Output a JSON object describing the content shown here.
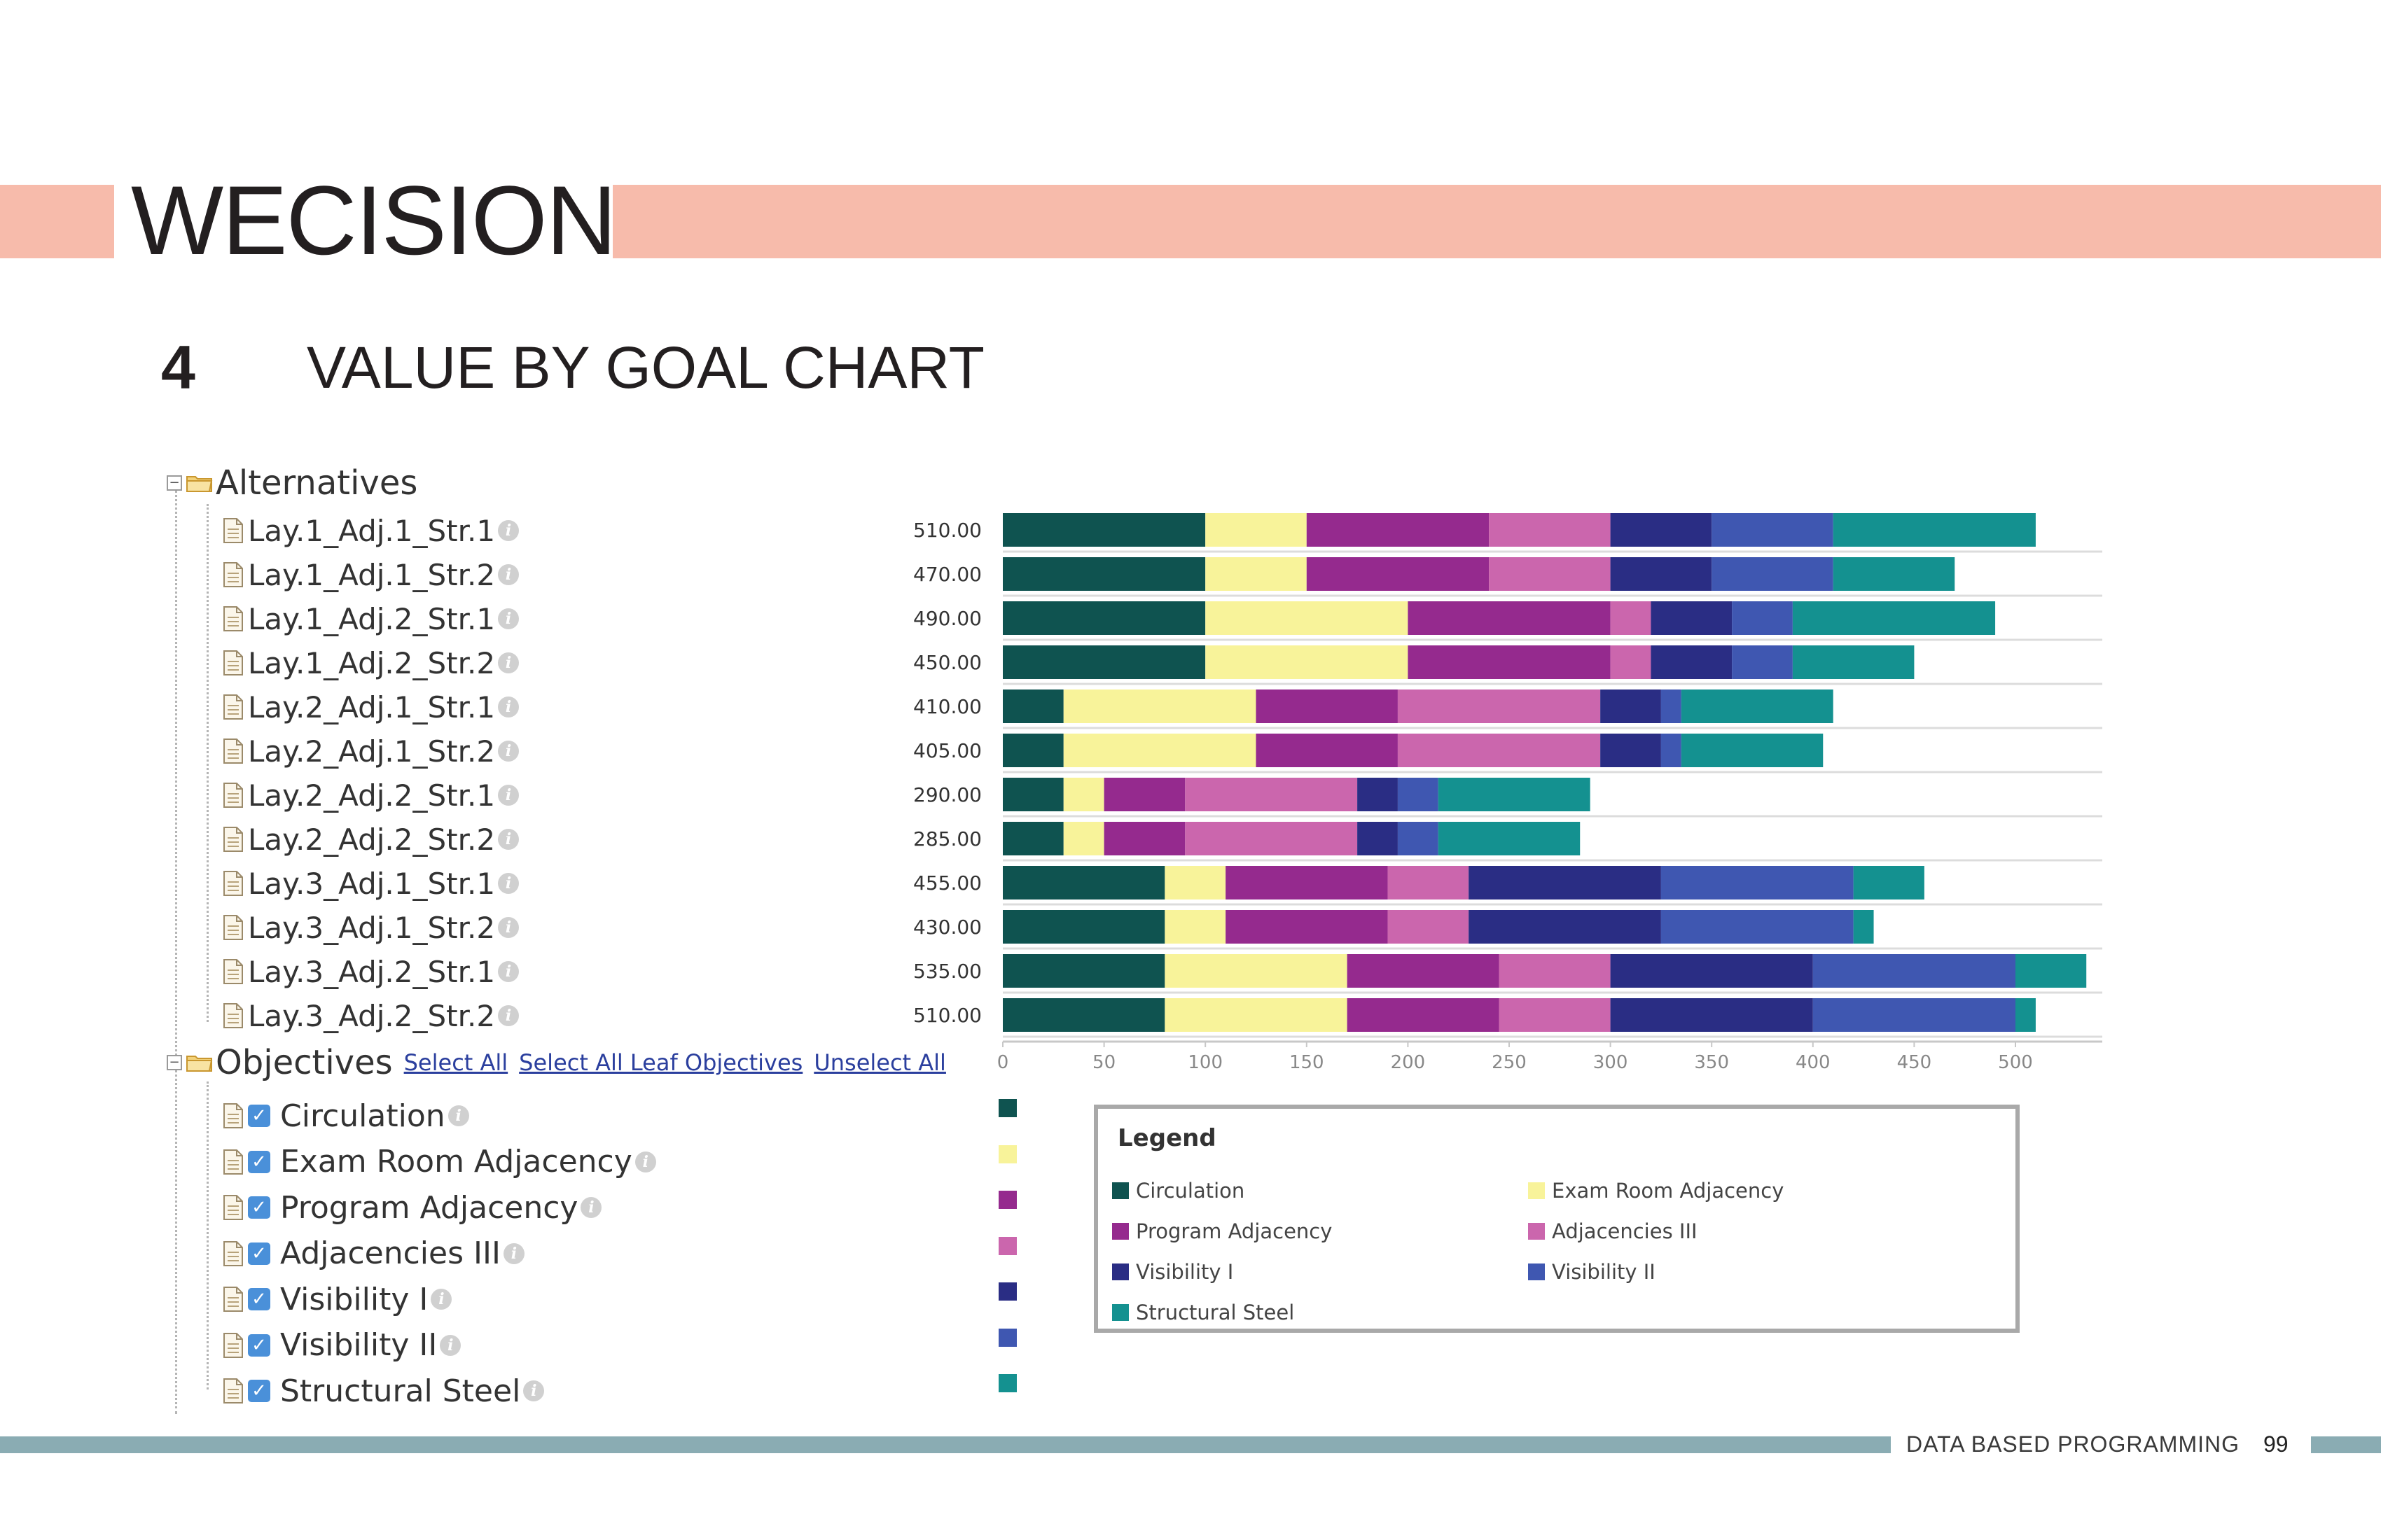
{
  "header": {
    "brand": "WECISION",
    "section_number": "4",
    "section_title": "VALUE BY GOAL CHART",
    "band_color": "#f7bbab"
  },
  "tree": {
    "alternatives_label": "Alternatives",
    "alternatives": [
      "Lay.1_Adj.1_Str.1",
      "Lay.1_Adj.1_Str.2",
      "Lay.1_Adj.2_Str.1",
      "Lay.1_Adj.2_Str.2",
      "Lay.2_Adj.1_Str.1",
      "Lay.2_Adj.1_Str.2",
      "Lay.2_Adj.2_Str.1",
      "Lay.2_Adj.2_Str.2",
      "Lay.3_Adj.1_Str.1",
      "Lay.3_Adj.1_Str.2",
      "Lay.3_Adj.2_Str.1",
      "Lay.3_Adj.2_Str.2"
    ],
    "objectives_label": "Objectives",
    "links": {
      "select_all": "Select All",
      "select_all_leaf": "Select All Leaf Objectives",
      "unselect_all": "Unselect All"
    },
    "objectives": [
      "Circulation",
      "Exam Room Adjacency",
      "Program Adjacency",
      "Adjacencies III",
      "Visibility I",
      "Visibility II",
      "Structural Steel"
    ],
    "objectives_checked": [
      true,
      true,
      true,
      true,
      true,
      true,
      true
    ]
  },
  "legend": {
    "title": "Legend"
  },
  "chart_data": {
    "type": "bar",
    "orientation": "horizontal",
    "stacked": true,
    "categories": [
      "Lay.1_Adj.1_Str.1",
      "Lay.1_Adj.1_Str.2",
      "Lay.1_Adj.2_Str.1",
      "Lay.1_Adj.2_Str.2",
      "Lay.2_Adj.1_Str.1",
      "Lay.2_Adj.1_Str.2",
      "Lay.2_Adj.2_Str.1",
      "Lay.2_Adj.2_Str.2",
      "Lay.3_Adj.1_Str.1",
      "Lay.3_Adj.1_Str.2",
      "Lay.3_Adj.2_Str.1",
      "Lay.3_Adj.2_Str.2"
    ],
    "totals": [
      "510.00",
      "470.00",
      "490.00",
      "450.00",
      "410.00",
      "405.00",
      "290.00",
      "285.00",
      "455.00",
      "430.00",
      "535.00",
      "510.00"
    ],
    "series": [
      {
        "name": "Circulation",
        "color": "#0f5350",
        "values": [
          100,
          100,
          100,
          100,
          30,
          30,
          30,
          30,
          80,
          80,
          80,
          80
        ]
      },
      {
        "name": "Exam Room Adjacency",
        "color": "#f8f39a",
        "values": [
          50,
          50,
          100,
          100,
          95,
          95,
          20,
          20,
          30,
          30,
          90,
          90
        ]
      },
      {
        "name": "Program Adjacency",
        "color": "#952a8e",
        "values": [
          90,
          90,
          100,
          100,
          70,
          70,
          40,
          40,
          80,
          80,
          75,
          75
        ]
      },
      {
        "name": "Adjacencies III",
        "color": "#cb66ad",
        "values": [
          60,
          60,
          20,
          20,
          100,
          100,
          85,
          85,
          40,
          40,
          55,
          55
        ]
      },
      {
        "name": "Visibility I",
        "color": "#2a2d84",
        "values": [
          50,
          50,
          40,
          40,
          30,
          30,
          20,
          20,
          95,
          95,
          100,
          100
        ]
      },
      {
        "name": "Visibility II",
        "color": "#3f57b1",
        "values": [
          60,
          60,
          30,
          30,
          10,
          10,
          20,
          20,
          95,
          95,
          100,
          100
        ]
      },
      {
        "name": "Structural Steel",
        "color": "#149190",
        "values": [
          100,
          60,
          100,
          60,
          75,
          70,
          75,
          70,
          35,
          10,
          35,
          10
        ]
      }
    ],
    "x_ticks": [
      "0",
      "50",
      "100",
      "150",
      "200",
      "250",
      "300",
      "350",
      "400",
      "450",
      "500"
    ],
    "xlim": [
      0,
      540
    ],
    "legend_position": "bottom"
  },
  "footer": {
    "text": "DATA BASED PROGRAMMING",
    "page": "99",
    "line_color": "#8aacb3"
  }
}
